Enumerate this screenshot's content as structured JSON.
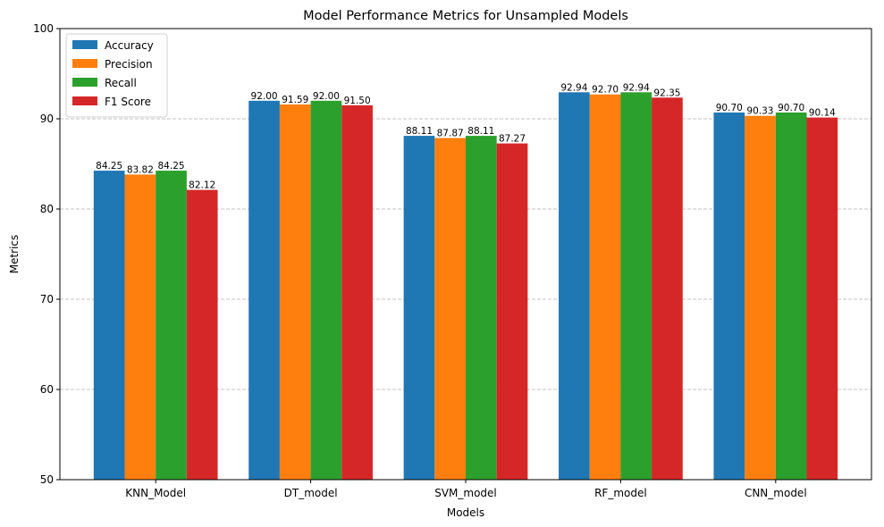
{
  "chart_data": {
    "type": "bar",
    "title": "Model Performance Metrics for Unsampled Models",
    "xlabel": "Models",
    "ylabel": "Metrics",
    "ylim": [
      50,
      100
    ],
    "yticks": [
      50,
      60,
      70,
      80,
      90,
      100
    ],
    "grid": "y-dashed",
    "legend_position": "top-left",
    "categories": [
      "KNN_Model",
      "DT_model",
      "SVM_model",
      "RF_model",
      "CNN_model"
    ],
    "series": [
      {
        "name": "Accuracy",
        "color": "#1f77b4",
        "values": [
          84.25,
          92.0,
          88.11,
          92.94,
          90.7
        ],
        "labels": [
          "84.25",
          "92.00",
          "88.11",
          "92.94",
          "90.70"
        ]
      },
      {
        "name": "Precision",
        "color": "#ff7f0e",
        "values": [
          83.82,
          91.59,
          87.87,
          92.7,
          90.33
        ],
        "labels": [
          "83.82",
          "91.59",
          "87.87",
          "92.70",
          "90.33"
        ]
      },
      {
        "name": "Recall",
        "color": "#2ca02c",
        "values": [
          84.25,
          92.0,
          88.11,
          92.94,
          90.7
        ],
        "labels": [
          "84.25",
          "92.00",
          "88.11",
          "92.94",
          "90.70"
        ]
      },
      {
        "name": "F1 Score",
        "color": "#d62728",
        "values": [
          82.12,
          91.5,
          87.27,
          92.35,
          90.14
        ],
        "labels": [
          "82.12",
          "91.50",
          "87.27",
          "92.35",
          "90.14"
        ]
      }
    ]
  }
}
